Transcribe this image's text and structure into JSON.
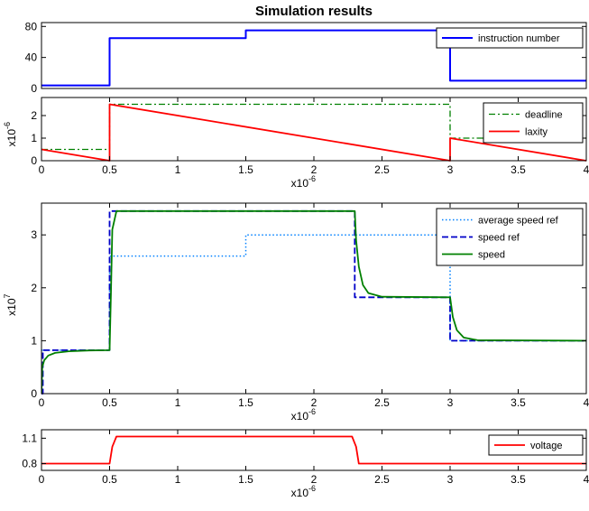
{
  "title": "Simulation results",
  "chart_data": [
    {
      "type": "line",
      "xlim": [
        0,
        4
      ],
      "ylim": [
        0,
        85
      ],
      "xticks": [],
      "yticks": [
        0,
        40,
        80
      ],
      "ytick_labels": [
        "0",
        "40",
        "80"
      ],
      "xlabel": "",
      "xlabel_exp": "",
      "ylabel": "",
      "ylabel_exp": "",
      "legend_position": "top-right",
      "series": [
        {
          "name": "instruction number",
          "color": "#0000ff",
          "dash": "solid",
          "width": 2,
          "x": [
            0,
            0.5,
            0.5,
            1.5,
            1.5,
            3.0,
            3.0,
            4.0
          ],
          "y": [
            4,
            4,
            65,
            65,
            75,
            75,
            10,
            10
          ]
        }
      ]
    },
    {
      "type": "line",
      "xlim": [
        0,
        4
      ],
      "ylim": [
        0,
        2.8
      ],
      "xticks": [
        0,
        0.5,
        1,
        1.5,
        2,
        2.5,
        3,
        3.5,
        4
      ],
      "xtick_labels": [
        "0",
        "0.5",
        "1",
        "1.5",
        "2",
        "2.5",
        "3",
        "3.5",
        "4"
      ],
      "yticks": [
        0,
        1,
        2
      ],
      "ytick_labels": [
        "0",
        "1",
        "2"
      ],
      "xlabel": "x10",
      "xlabel_exp": "-6",
      "ylabel": "x10",
      "ylabel_exp": "-6",
      "legend_position": "top-right",
      "series": [
        {
          "name": "deadline",
          "color": "#008000",
          "dash": "dashdot",
          "width": 1.3,
          "x": [
            0,
            0.5,
            0.5,
            3.0,
            3.0,
            4.0
          ],
          "y": [
            0.5,
            0.5,
            2.5,
            2.5,
            1.0,
            1.0
          ]
        },
        {
          "name": "laxity",
          "color": "#ff0000",
          "dash": "solid",
          "width": 1.8,
          "x": [
            0,
            0.5,
            0.5,
            3.0,
            3.0,
            4.0
          ],
          "y": [
            0.5,
            0.0,
            2.5,
            0.0,
            1.0,
            0.0
          ]
        }
      ]
    },
    {
      "type": "line",
      "xlim": [
        0,
        4
      ],
      "ylim": [
        0,
        3.6
      ],
      "xticks": [
        0,
        0.5,
        1,
        1.5,
        2,
        2.5,
        3,
        3.5,
        4
      ],
      "xtick_labels": [
        "0",
        "0.5",
        "1",
        "1.5",
        "2",
        "2.5",
        "3",
        "3.5",
        "4"
      ],
      "yticks": [
        0,
        1,
        2,
        3
      ],
      "ytick_labels": [
        "0",
        "1",
        "2",
        "3"
      ],
      "xlabel": "x10",
      "xlabel_exp": "-6",
      "ylabel": "x10",
      "ylabel_exp": "7",
      "legend_position": "top-right",
      "series": [
        {
          "name": "average speed ref",
          "color": "#0080ff",
          "dash": "dotted",
          "width": 1.5,
          "x": [
            0,
            0.5,
            0.5,
            1.5,
            1.5,
            3.0,
            3.0,
            4.0
          ],
          "y": [
            0.82,
            0.82,
            2.6,
            2.6,
            3.0,
            3.0,
            1.0,
            1.0
          ]
        },
        {
          "name": "speed ref",
          "color": "#0000c8",
          "dash": "dashed",
          "width": 1.8,
          "x": [
            0,
            0.01,
            0.01,
            0.5,
            0.5,
            2.3,
            2.3,
            3.0,
            3.0,
            4.0
          ],
          "y": [
            0,
            0,
            0.82,
            0.82,
            3.45,
            3.45,
            1.82,
            1.82,
            1.0,
            1.0
          ]
        },
        {
          "name": "speed",
          "color": "#008000",
          "dash": "solid",
          "width": 1.8,
          "x": [
            0,
            0.005,
            0.02,
            0.05,
            0.1,
            0.2,
            0.35,
            0.5,
            0.51,
            0.52,
            0.55,
            2.3,
            2.31,
            2.33,
            2.36,
            2.4,
            2.5,
            3.0,
            3.02,
            3.05,
            3.1,
            3.2,
            4.0
          ],
          "y": [
            0,
            0.5,
            0.63,
            0.72,
            0.77,
            0.8,
            0.815,
            0.82,
            1.9,
            3.1,
            3.45,
            3.45,
            2.9,
            2.4,
            2.05,
            1.9,
            1.83,
            1.82,
            1.45,
            1.2,
            1.06,
            1.01,
            1.0
          ]
        }
      ]
    },
    {
      "type": "line",
      "xlim": [
        0,
        4
      ],
      "ylim": [
        0.72,
        1.2
      ],
      "xticks": [
        0,
        0.5,
        1,
        1.5,
        2,
        2.5,
        3,
        3.5,
        4
      ],
      "xtick_labels": [
        "0",
        "0.5",
        "1",
        "1.5",
        "2",
        "2.5",
        "3",
        "3.5",
        "4"
      ],
      "yticks": [
        0.8,
        1.1
      ],
      "ytick_labels": [
        "0.8",
        "1.1"
      ],
      "xlabel": "x10",
      "xlabel_exp": "-6",
      "ylabel": "",
      "ylabel_exp": "",
      "legend_position": "top-right",
      "series": [
        {
          "name": "voltage",
          "color": "#ff0000",
          "dash": "solid",
          "width": 1.8,
          "x": [
            0,
            0.5,
            0.52,
            0.55,
            2.28,
            2.31,
            2.33,
            4.0
          ],
          "y": [
            0.8,
            0.8,
            1.0,
            1.12,
            1.12,
            1.0,
            0.8,
            0.8
          ]
        }
      ]
    }
  ]
}
